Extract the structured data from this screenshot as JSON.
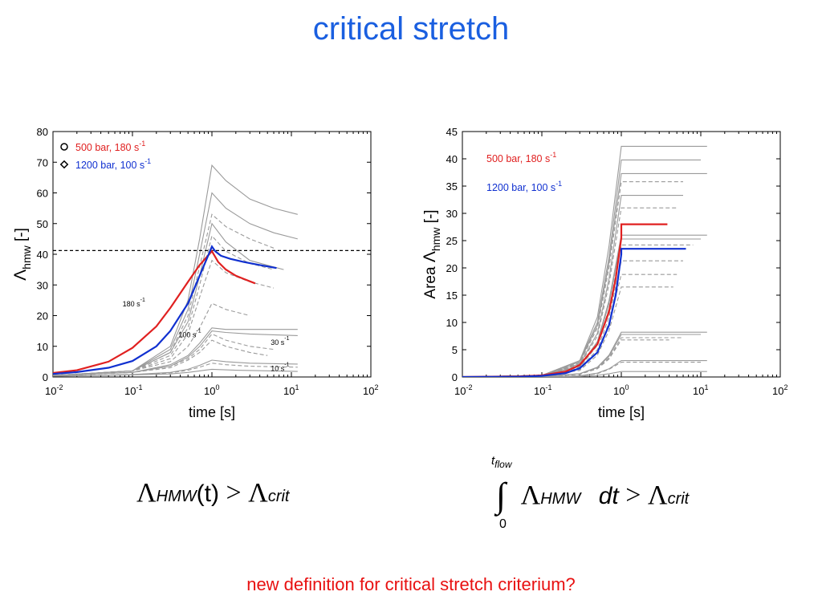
{
  "slide": {
    "title": "critical stretch",
    "bottom_text": "new definition for critical stretch criterium?",
    "formula_left": {
      "lhs_symbol": "Λ",
      "lhs_sub": "HMW",
      "arg": "(t)",
      "op": ">",
      "rhs_symbol": "Λ",
      "rhs_sub": "crit"
    },
    "formula_right": {
      "upper_limit": "t",
      "upper_sub": "flow",
      "lower_limit": "0",
      "integral": "∫",
      "symbol": "Λ",
      "sub": "HMW",
      "dt": "dt",
      "op": ">",
      "rhs_symbol": "Λ",
      "rhs_sub": "crit"
    }
  },
  "colors": {
    "title": "#1a5fe0",
    "red_series": "#e02020",
    "blue_series": "#1030d0",
    "gray": "#9a9a9a",
    "bottom_text": "#e81010"
  },
  "chart_data": [
    {
      "type": "line",
      "xscale": "log",
      "xlim": [
        0.01,
        100
      ],
      "ylim": [
        0,
        80
      ],
      "xticks": [
        0.01,
        0.1,
        1,
        10,
        100
      ],
      "xtick_labels": [
        {
          "base": "10",
          "exp": "-2"
        },
        {
          "base": "10",
          "exp": "-1"
        },
        {
          "base": "10",
          "exp": "0"
        },
        {
          "base": "10",
          "exp": "1"
        },
        {
          "base": "10",
          "exp": "2"
        }
      ],
      "yticks": [
        0,
        10,
        20,
        30,
        40,
        50,
        60,
        70,
        80
      ],
      "xlabel": "time [s]",
      "ylabel_symbol": "Λ",
      "ylabel_sub": "hmw",
      "ylabel_unit": " [-]",
      "critical_line": 41.2,
      "legend": [
        {
          "marker": "o",
          "text": "500 bar, 180 s",
          "exp": "-1",
          "color": "#e02020"
        },
        {
          "marker": "◇",
          "text": "1200 bar, 100 s",
          "exp": "-1",
          "color": "#1030d0"
        }
      ],
      "annotations": [
        {
          "text": "180 s",
          "exp": "-1",
          "x": 0.075,
          "y": 23
        },
        {
          "text": "100 s",
          "exp": "-1",
          "x": 0.38,
          "y": 13
        },
        {
          "text": "30 s",
          "exp": "-1",
          "x": 5.5,
          "y": 10.5
        },
        {
          "text": "10 s",
          "exp": "-1",
          "x": 5.5,
          "y": 2
        }
      ],
      "series": [
        {
          "name": "500 bar, 180 s-1",
          "color": "#e02020",
          "width": 2.2,
          "x": [
            0.01,
            0.02,
            0.05,
            0.1,
            0.2,
            0.3,
            0.5,
            0.7,
            1.0,
            1.2,
            1.5,
            2.0,
            2.5,
            3.5
          ],
          "y": [
            1.3,
            2.2,
            5.0,
            9.5,
            16.5,
            22.5,
            31.0,
            36.5,
            41.0,
            37.5,
            35.0,
            33.0,
            32.0,
            30.5
          ]
        },
        {
          "name": "1200 bar, 100 s-1",
          "color": "#1030d0",
          "width": 2.2,
          "x": [
            0.01,
            0.02,
            0.05,
            0.1,
            0.2,
            0.3,
            0.5,
            0.7,
            1.0,
            1.1,
            1.3,
            1.7,
            2.5,
            4.0,
            6.5
          ],
          "y": [
            1.0,
            1.6,
            3.0,
            5.2,
            10.0,
            15.0,
            24.0,
            33.0,
            42.5,
            41.0,
            39.5,
            38.5,
            37.5,
            36.5,
            35.5
          ]
        }
      ],
      "gray_series": [
        {
          "x": [
            0.01,
            0.1,
            0.3,
            0.5,
            0.7,
            1.0,
            1.5,
            3,
            6,
            12
          ],
          "y": [
            0.5,
            2,
            10,
            25,
            45,
            69,
            64,
            58,
            55,
            53
          ]
        },
        {
          "x": [
            0.01,
            0.1,
            0.3,
            0.5,
            0.7,
            1.0,
            1.5,
            3,
            6,
            12
          ],
          "y": [
            0.5,
            2,
            9,
            22,
            40,
            60,
            55,
            50,
            47,
            45
          ]
        },
        {
          "x": [
            0.01,
            0.1,
            0.3,
            0.5,
            0.7,
            1.0,
            1.5,
            3,
            6
          ],
          "y": [
            0.5,
            2,
            8,
            20,
            36,
            53,
            49,
            45,
            42
          ],
          "dash": true
        },
        {
          "x": [
            0.01,
            0.1,
            0.3,
            0.5,
            0.7,
            1.0,
            1.5,
            3,
            8
          ],
          "y": [
            0.5,
            2,
            8,
            18,
            33,
            50,
            44,
            38,
            35
          ]
        },
        {
          "x": [
            0.01,
            0.1,
            0.3,
            0.5,
            0.7,
            1.0,
            1.5,
            3,
            6
          ],
          "y": [
            0.5,
            2,
            7,
            16,
            30,
            46,
            41,
            37,
            35
          ],
          "dash": true
        },
        {
          "x": [
            0.01,
            0.1,
            0.3,
            0.5,
            0.7,
            1.0,
            1.5,
            3,
            6
          ],
          "y": [
            0.5,
            2,
            6,
            14,
            26,
            38,
            34,
            31,
            29
          ],
          "dash": true
        },
        {
          "x": [
            0.01,
            0.1,
            0.3,
            0.5,
            0.7,
            1.0,
            1.5,
            3
          ],
          "y": [
            0.5,
            2,
            5,
            10,
            16,
            24,
            22,
            20
          ],
          "dash": true
        },
        {
          "x": [
            0.01,
            0.1,
            0.3,
            0.5,
            0.7,
            1.0,
            1.5,
            3,
            12
          ],
          "y": [
            0.5,
            1.5,
            4,
            7,
            11,
            16,
            15.5,
            15.5,
            15.5
          ]
        },
        {
          "x": [
            0.01,
            0.1,
            0.3,
            0.5,
            0.7,
            1.0,
            1.5,
            3,
            12
          ],
          "y": [
            0.5,
            1.5,
            3.5,
            6.5,
            10,
            15,
            14.5,
            14,
            13.5
          ]
        },
        {
          "x": [
            0.01,
            0.1,
            0.3,
            0.5,
            0.7,
            1.0,
            1.5,
            3,
            6
          ],
          "y": [
            0.5,
            1.5,
            3.5,
            6,
            9,
            14,
            12,
            10,
            9
          ],
          "dash": true
        },
        {
          "x": [
            0.01,
            0.1,
            0.3,
            0.5,
            0.7,
            1.0,
            1.5,
            3,
            5
          ],
          "y": [
            0.5,
            1.5,
            3,
            5.5,
            8,
            12,
            10,
            8,
            7
          ],
          "dash": true
        },
        {
          "x": [
            0.01,
            0.1,
            0.3,
            0.5,
            0.7,
            1.0,
            1.5,
            3,
            12
          ],
          "y": [
            0.3,
            0.8,
            1.5,
            2.5,
            3.8,
            5.5,
            5,
            4.5,
            4.2
          ]
        },
        {
          "x": [
            0.01,
            0.1,
            0.3,
            0.5,
            0.7,
            1.0,
            1.5,
            3,
            12
          ],
          "y": [
            0.3,
            0.8,
            1.3,
            2.2,
            3.2,
            4.5,
            4,
            3.5,
            3.2
          ],
          "dash": true
        },
        {
          "x": [
            0.01,
            0.1,
            0.3,
            0.5,
            0.7,
            1.0,
            2,
            12
          ],
          "y": [
            0.3,
            0.7,
            1.0,
            1.5,
            2,
            2.5,
            2.2,
            1.8
          ]
        }
      ]
    },
    {
      "type": "line",
      "xscale": "log",
      "xlim": [
        0.01,
        100
      ],
      "ylim": [
        0,
        45
      ],
      "xticks": [
        0.01,
        0.1,
        1,
        10,
        100
      ],
      "xtick_labels": [
        {
          "base": "10",
          "exp": "-2"
        },
        {
          "base": "10",
          "exp": "-1"
        },
        {
          "base": "10",
          "exp": "0"
        },
        {
          "base": "10",
          "exp": "1"
        },
        {
          "base": "10",
          "exp": "2"
        }
      ],
      "yticks": [
        0,
        5,
        10,
        15,
        20,
        25,
        30,
        35,
        40,
        45
      ],
      "xlabel": "time [s]",
      "ylabel_prefix": "Area ",
      "ylabel_symbol": "Λ",
      "ylabel_sub": "hmw",
      "ylabel_unit": " [-]",
      "legend": [
        {
          "text": "500 bar, 180 s",
          "exp": "-1",
          "color": "#e02020"
        },
        {
          "text": "1200 bar, 100 s",
          "exp": "-1",
          "color": "#1030d0"
        }
      ],
      "series": [
        {
          "name": "500 bar, 180 s-1",
          "color": "#e02020",
          "width": 2.2,
          "x": [
            0.01,
            0.05,
            0.1,
            0.2,
            0.3,
            0.5,
            0.7,
            0.85,
            1.0,
            1.0,
            3.8
          ],
          "y": [
            0.0,
            0.1,
            0.3,
            1.0,
            2.2,
            6.0,
            12.0,
            18.0,
            25.5,
            28.0,
            28.0
          ]
        },
        {
          "name": "1200 bar, 100 s-1",
          "color": "#1030d0",
          "width": 2.2,
          "x": [
            0.01,
            0.05,
            0.1,
            0.2,
            0.3,
            0.5,
            0.7,
            0.85,
            1.0,
            1.0,
            6.5
          ],
          "y": [
            0.0,
            0.05,
            0.2,
            0.7,
            1.6,
            4.5,
            9.5,
            15.0,
            22.5,
            23.5,
            23.5
          ]
        }
      ],
      "gray_series": [
        {
          "x": [
            0.01,
            0.1,
            0.3,
            0.5,
            0.7,
            1.0,
            12
          ],
          "y": [
            0,
            0.3,
            3,
            11,
            24,
            42.3,
            42.3
          ]
        },
        {
          "x": [
            0.01,
            0.1,
            0.3,
            0.5,
            0.7,
            1.0,
            10
          ],
          "y": [
            0,
            0.3,
            3,
            10,
            22,
            39.8,
            39.8
          ]
        },
        {
          "x": [
            0.01,
            0.1,
            0.3,
            0.5,
            0.7,
            1.0,
            12
          ],
          "y": [
            0,
            0.3,
            2.8,
            9.5,
            21,
            37.3,
            37.3
          ]
        },
        {
          "x": [
            0.01,
            0.1,
            0.3,
            0.5,
            0.7,
            1.0,
            6
          ],
          "y": [
            0,
            0.3,
            2.6,
            9,
            20,
            35.8,
            35.8
          ],
          "dash": true
        },
        {
          "x": [
            0.01,
            0.1,
            0.3,
            0.5,
            0.7,
            1.0,
            6
          ],
          "y": [
            0,
            0.3,
            2.4,
            8,
            18,
            33.3,
            33.3
          ]
        },
        {
          "x": [
            0.01,
            0.1,
            0.3,
            0.5,
            0.7,
            1.0,
            5
          ],
          "y": [
            0,
            0.3,
            2.2,
            7.5,
            17,
            31.0,
            31.0
          ],
          "dash": true
        },
        {
          "x": [
            0.01,
            0.1,
            0.3,
            0.5,
            0.7,
            1.0,
            12
          ],
          "y": [
            0,
            0.3,
            2,
            6.5,
            14,
            26.0,
            26.0
          ]
        },
        {
          "x": [
            0.01,
            0.1,
            0.3,
            0.5,
            0.7,
            1.0,
            10
          ],
          "y": [
            0,
            0.3,
            1.9,
            6.2,
            13.5,
            25.3,
            25.3
          ]
        },
        {
          "x": [
            0.01,
            0.1,
            0.3,
            0.5,
            0.7,
            1.0,
            8
          ],
          "y": [
            0,
            0.3,
            1.8,
            5.8,
            12.5,
            24.2,
            24.2
          ],
          "dash": true
        },
        {
          "x": [
            0.01,
            0.1,
            0.3,
            0.5,
            0.7,
            1.0,
            6
          ],
          "y": [
            0,
            0.2,
            1.6,
            5,
            11,
            21.3,
            21.3
          ],
          "dash": true
        },
        {
          "x": [
            0.01,
            0.1,
            0.3,
            0.5,
            0.7,
            1.0,
            5
          ],
          "y": [
            0,
            0.2,
            1.4,
            4.5,
            10,
            18.8,
            18.8
          ],
          "dash": true
        },
        {
          "x": [
            0.01,
            0.1,
            0.3,
            0.5,
            0.7,
            1.0,
            4.5
          ],
          "y": [
            0,
            0.2,
            1.2,
            4,
            8.5,
            16.5,
            16.5
          ],
          "dash": true
        },
        {
          "x": [
            0.01,
            0.1,
            0.3,
            0.5,
            0.7,
            1.0,
            12
          ],
          "y": [
            0,
            0.1,
            0.6,
            1.8,
            4,
            8.2,
            8.2
          ]
        },
        {
          "x": [
            0.01,
            0.1,
            0.3,
            0.5,
            0.7,
            1.0,
            10
          ],
          "y": [
            0,
            0.1,
            0.6,
            1.7,
            3.8,
            7.8,
            7.8
          ]
        },
        {
          "x": [
            0.01,
            0.1,
            0.3,
            0.5,
            0.7,
            1.0,
            6
          ],
          "y": [
            0,
            0.1,
            0.5,
            1.6,
            3.5,
            7.2,
            7.2
          ],
          "dash": true
        },
        {
          "x": [
            0.01,
            0.1,
            0.3,
            0.5,
            0.7,
            1.0,
            4
          ],
          "y": [
            0,
            0.1,
            0.5,
            1.5,
            3.3,
            6.8,
            6.8
          ],
          "dash": true
        },
        {
          "x": [
            0.01,
            0.1,
            0.3,
            0.5,
            0.7,
            1.0,
            12
          ],
          "y": [
            0,
            0.05,
            0.2,
            0.7,
            1.5,
            3.0,
            3.0
          ]
        },
        {
          "x": [
            0.01,
            0.1,
            0.3,
            0.5,
            0.7,
            1.0,
            10
          ],
          "y": [
            0,
            0.05,
            0.2,
            0.6,
            1.4,
            2.7,
            2.7
          ],
          "dash": true
        },
        {
          "x": [
            0.01,
            0.1,
            0.3,
            0.5,
            0.7,
            1.0,
            12
          ],
          "y": [
            0,
            0.02,
            0.1,
            0.3,
            0.6,
            1.0,
            1.0
          ]
        }
      ]
    }
  ]
}
